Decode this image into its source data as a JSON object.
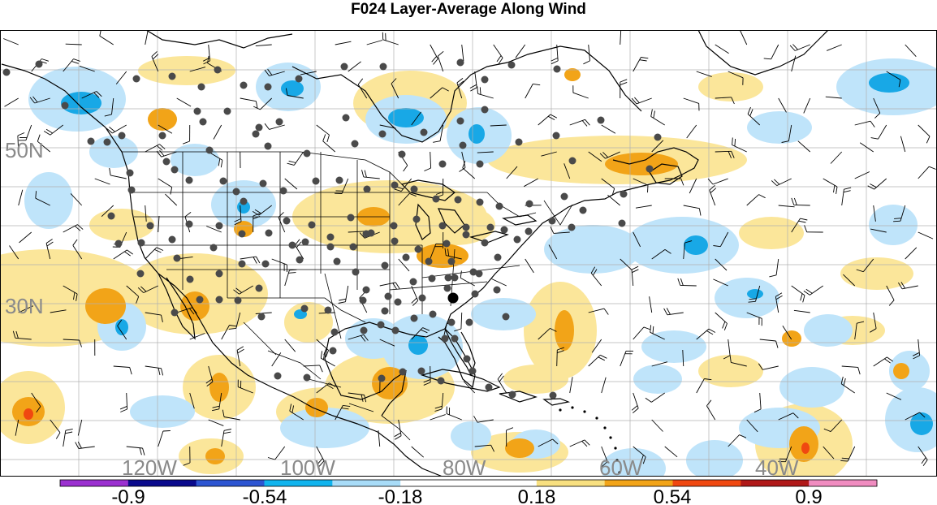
{
  "title": "F024 Layer-Average Along Wind",
  "map": {
    "lat_labels": [
      "50N",
      "30N"
    ],
    "lon_labels": [
      "120W",
      "100W",
      "80W",
      "60W",
      "40W"
    ],
    "label_color": "#8a8a8a",
    "grid_color": "#b0b0b0",
    "coast_color": "#000000"
  },
  "colorbar": {
    "segments": [
      "#9b30d0",
      "#0a0a8c",
      "#2d55d2",
      "#10b4ee",
      "#a8dcf8",
      "#ffffff",
      "#ffffff",
      "#f8e080",
      "#f2a418",
      "#f04810",
      "#b01818",
      "#f08cc0"
    ],
    "tick_labels": [
      "-0.9",
      "-0.54",
      "-0.18",
      "0.18",
      "0.54",
      "0.9"
    ]
  },
  "colors": {
    "blue_light": "#bfe4fa",
    "blue_mid": "#18a8e6",
    "yellow": "#fbe69a",
    "orange": "#f2a418",
    "red": "#f04810",
    "station": "#4a4a4a"
  }
}
